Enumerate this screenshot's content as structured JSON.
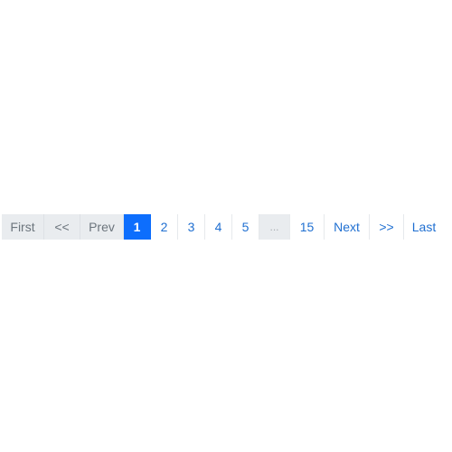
{
  "pagination": {
    "first_label": "First",
    "dbl_prev_label": "<<",
    "prev_label": "Prev",
    "pages": {
      "p1": "1",
      "p2": "2",
      "p3": "3",
      "p4": "4",
      "p5": "5",
      "ellipsis": "...",
      "p15": "15"
    },
    "current_page": 1,
    "next_label": "Next",
    "dbl_next_label": ">>",
    "last_label": "Last"
  },
  "colors": {
    "accent": "#0d6efd",
    "link": "#1f6fd1",
    "disabled_bg": "#e9ecef",
    "disabled_text": "#6c757d"
  }
}
